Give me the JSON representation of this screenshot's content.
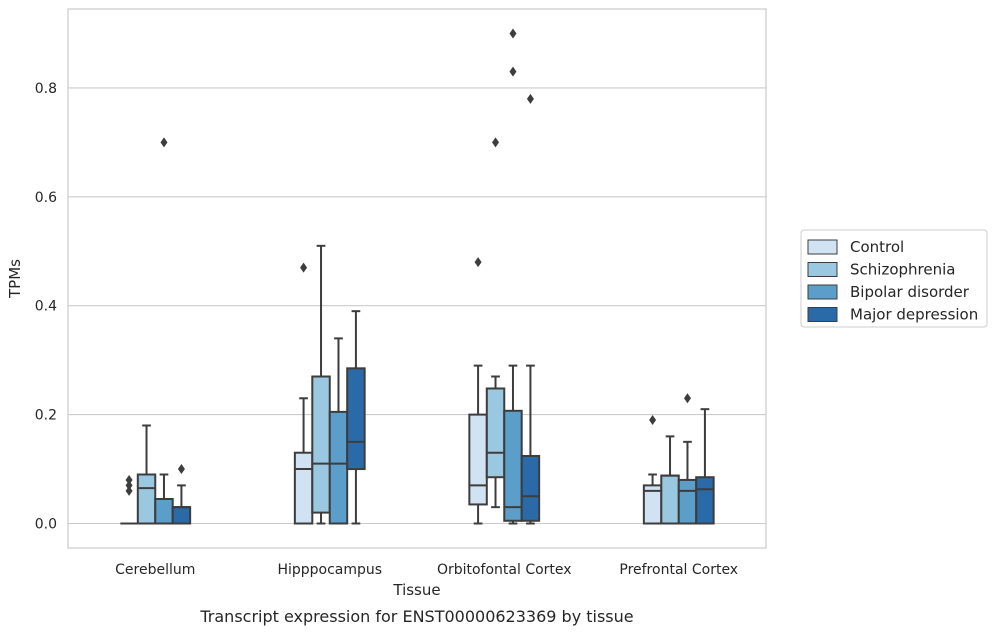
{
  "caption": "Transcript expression for ENST00000623369 by tissue",
  "chart_data": {
    "type": "box",
    "title": "",
    "xlabel": "Tissue",
    "ylabel": "TPMs",
    "ylim": [
      -0.045,
      0.945
    ],
    "yticks": [
      0.0,
      0.2,
      0.4,
      0.6,
      0.8
    ],
    "ytick_labels": [
      "0.0",
      "0.2",
      "0.4",
      "0.6",
      "0.8"
    ],
    "grid": "horizontal",
    "legend_position": "outside-right",
    "categories": [
      "Cerebellum",
      "Hipppocampus",
      "Orbitofontal Cortex",
      "Prefrontal Cortex"
    ],
    "series": [
      {
        "name": "Control",
        "color": "#d1e2f2",
        "boxes": [
          {
            "whislo": 0.0,
            "q1": 0.0,
            "med": 0.0,
            "q3": 0.0,
            "whishi": 0.0,
            "fliers": [
              0.06,
              0.07,
              0.08
            ]
          },
          {
            "whislo": 0.0,
            "q1": 0.0,
            "med": 0.1,
            "q3": 0.13,
            "whishi": 0.23,
            "fliers": [
              0.47
            ]
          },
          {
            "whislo": 0.0,
            "q1": 0.035,
            "med": 0.07,
            "q3": 0.2,
            "whishi": 0.29,
            "fliers": [
              0.48
            ]
          },
          {
            "whislo": 0.0,
            "q1": 0.0,
            "med": 0.06,
            "q3": 0.07,
            "whishi": 0.09,
            "fliers": [
              0.19
            ]
          }
        ]
      },
      {
        "name": "Schizophrenia",
        "color": "#9ac8e0",
        "boxes": [
          {
            "whislo": 0.0,
            "q1": 0.0,
            "med": 0.065,
            "q3": 0.09,
            "whishi": 0.18,
            "fliers": []
          },
          {
            "whislo": 0.0,
            "q1": 0.02,
            "med": 0.11,
            "q3": 0.27,
            "whishi": 0.51,
            "fliers": []
          },
          {
            "whislo": 0.03,
            "q1": 0.085,
            "med": 0.13,
            "q3": 0.248,
            "whishi": 0.27,
            "fliers": [
              0.7
            ]
          },
          {
            "whislo": 0.0,
            "q1": 0.0,
            "med": 0.088,
            "q3": 0.088,
            "whishi": 0.16,
            "fliers": []
          }
        ]
      },
      {
        "name": "Bipolar disorder",
        "color": "#5a9ec9",
        "boxes": [
          {
            "whislo": 0.0,
            "q1": 0.0,
            "med": 0.045,
            "q3": 0.045,
            "whishi": 0.09,
            "fliers": [
              0.7
            ]
          },
          {
            "whislo": 0.0,
            "q1": 0.0,
            "med": 0.11,
            "q3": 0.205,
            "whishi": 0.34,
            "fliers": []
          },
          {
            "whislo": 0.0,
            "q1": 0.005,
            "med": 0.03,
            "q3": 0.207,
            "whishi": 0.29,
            "fliers": [
              0.83,
              0.9
            ]
          },
          {
            "whislo": 0.0,
            "q1": 0.0,
            "med": 0.06,
            "q3": 0.08,
            "whishi": 0.15,
            "fliers": [
              0.23
            ]
          }
        ]
      },
      {
        "name": "Major depression",
        "color": "#2b6aa8",
        "boxes": [
          {
            "whislo": 0.0,
            "q1": 0.0,
            "med": 0.03,
            "q3": 0.03,
            "whishi": 0.07,
            "fliers": [
              0.1
            ]
          },
          {
            "whislo": 0.0,
            "q1": 0.1,
            "med": 0.15,
            "q3": 0.285,
            "whishi": 0.39,
            "fliers": []
          },
          {
            "whislo": 0.0,
            "q1": 0.005,
            "med": 0.05,
            "q3": 0.124,
            "whishi": 0.29,
            "fliers": [
              0.78
            ]
          },
          {
            "whislo": 0.0,
            "q1": 0.0,
            "med": 0.063,
            "q3": 0.085,
            "whishi": 0.21,
            "fliers": []
          }
        ]
      }
    ]
  }
}
